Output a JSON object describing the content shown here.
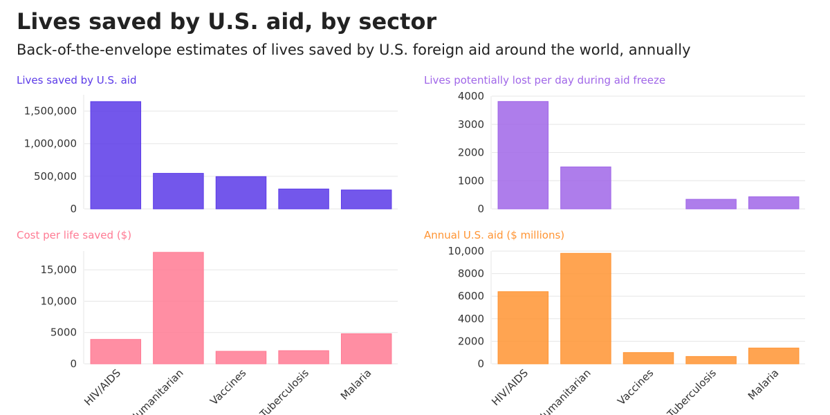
{
  "title": "Lives saved by U.S. aid, by sector",
  "subtitle": "Back-of-the-envelope estimates of lives saved by U.S. foreign aid around the world, annually",
  "chart_data": [
    {
      "type": "bar",
      "title": "Lives saved by U.S. aid",
      "color": "#5b3ae8",
      "categories": [
        "HIV/AIDS",
        "Humanitarian",
        "Vaccines",
        "Tuberculosis",
        "Malaria"
      ],
      "values": [
        1645000,
        545000,
        495000,
        305000,
        290000
      ],
      "yticks": [
        0,
        500000,
        1000000,
        1500000
      ],
      "ytick_labels": [
        "0",
        "500,000",
        "1,000,000",
        "1,500,000"
      ],
      "ylim": [
        0,
        1750000
      ],
      "show_xlabels": false
    },
    {
      "type": "bar",
      "title": "Lives potentially lost per day during aid freeze",
      "color": "#a066e8",
      "categories": [
        "HIV/AIDS",
        "Humanitarian",
        "Vaccines",
        "Tuberculosis",
        "Malaria"
      ],
      "values": [
        3810,
        1490,
        0,
        340,
        430
      ],
      "yticks": [
        0,
        1000,
        2000,
        3000,
        4000
      ],
      "ytick_labels": [
        "0",
        "1000",
        "2000",
        "3000",
        "4000"
      ],
      "ylim": [
        0,
        4000
      ],
      "show_xlabels": false
    },
    {
      "type": "bar",
      "title": "Cost per life saved ($)",
      "color": "#ff7a93",
      "categories": [
        "HIV/AIDS",
        "Humanitarian",
        "Vaccines",
        "Tuberculosis",
        "Malaria"
      ],
      "values": [
        3900,
        17800,
        2000,
        2100,
        4800
      ],
      "yticks": [
        0,
        5000,
        10000,
        15000
      ],
      "ytick_labels": [
        "0",
        "5000",
        "10,000",
        "15,000"
      ],
      "ylim": [
        0,
        18000
      ],
      "show_xlabels": true
    },
    {
      "type": "bar",
      "title": "Annual U.S. aid ($ millions)",
      "color": "#ff9433",
      "categories": [
        "HIV/AIDS",
        "Humanitarian",
        "Vaccines",
        "Tuberculosis",
        "Malaria"
      ],
      "values": [
        6400,
        9800,
        1000,
        650,
        1400
      ],
      "yticks": [
        0,
        2000,
        4000,
        6000,
        8000,
        10000
      ],
      "ytick_labels": [
        "0",
        "2000",
        "4000",
        "6000",
        "8000",
        "10,000"
      ],
      "ylim": [
        0,
        10000
      ],
      "show_xlabels": true
    }
  ]
}
